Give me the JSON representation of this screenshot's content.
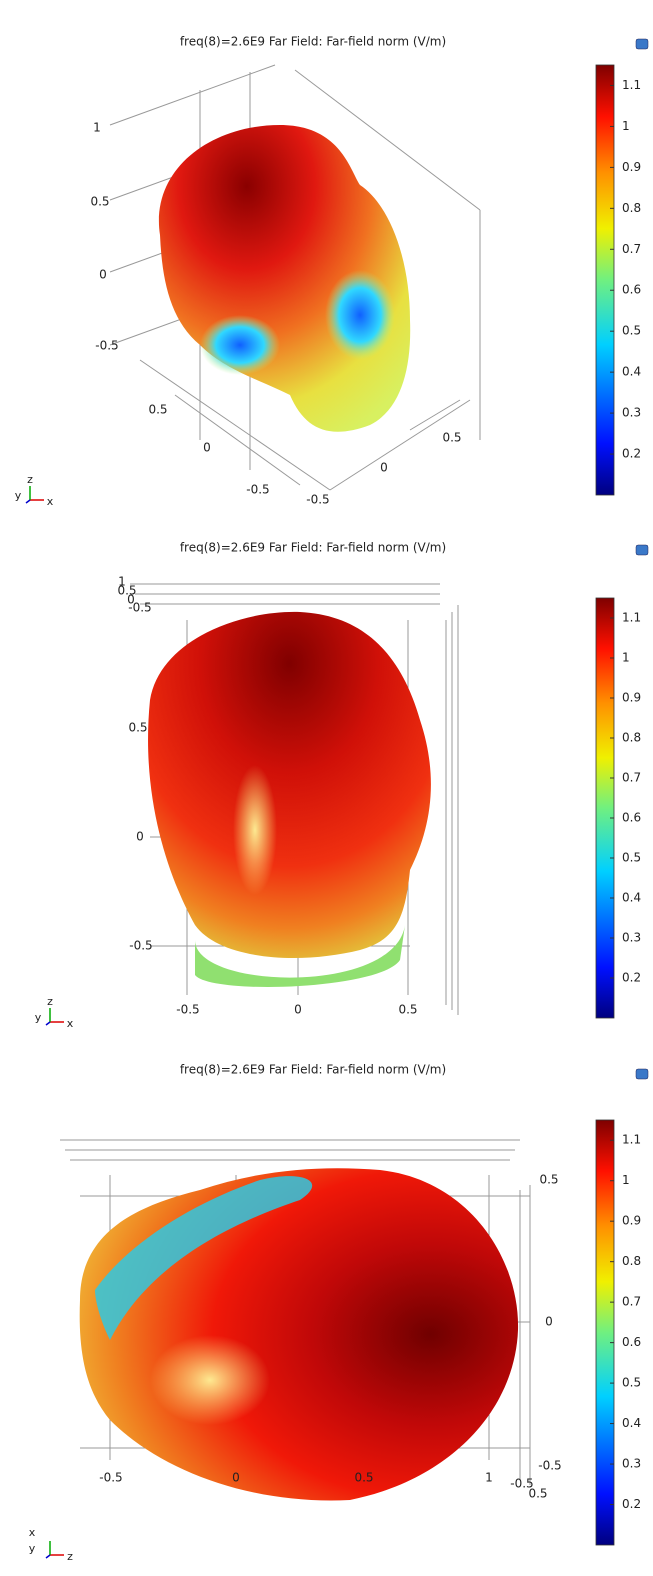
{
  "panels": [
    {
      "title": "freq(8)=2.6E9   Far Field: Far-field norm (V/m)",
      "colorbar": {
        "range": [
          0.1,
          1.15
        ],
        "ticks": [
          0.2,
          0.3,
          0.4,
          0.5,
          0.6,
          0.7,
          0.8,
          0.9,
          1,
          1.1
        ]
      },
      "axis_labels": [
        1,
        0.5,
        0,
        -0.5,
        0.5,
        0,
        -0.5,
        -0.5,
        0,
        0.5
      ],
      "triad": [
        "y",
        "z",
        "x"
      ]
    },
    {
      "title": "freq(8)=2.6E9   Far Field: Far-field norm (V/m)",
      "colorbar": {
        "range": [
          0.1,
          1.15
        ],
        "ticks": [
          0.2,
          0.3,
          0.4,
          0.5,
          0.6,
          0.7,
          0.8,
          0.9,
          1,
          1.1
        ]
      },
      "axis_labels": [
        1,
        0.5,
        0,
        -0.5,
        0.5,
        0,
        -0.5,
        -0.5,
        0,
        0.5
      ],
      "triad": [
        "y",
        "z",
        "x"
      ]
    },
    {
      "title": "freq(8)=2.6E9   Far Field: Far-field norm (V/m)",
      "colorbar": {
        "range": [
          0.1,
          1.15
        ],
        "ticks": [
          0.2,
          0.3,
          0.4,
          0.5,
          0.6,
          0.7,
          0.8,
          0.9,
          1,
          1.1
        ]
      },
      "axis_labels": [
        0.5,
        0,
        -0.5,
        -0.5,
        0,
        0.5,
        1,
        -0.5,
        0.5
      ],
      "triad": [
        "x",
        "y",
        "z"
      ]
    }
  ]
}
